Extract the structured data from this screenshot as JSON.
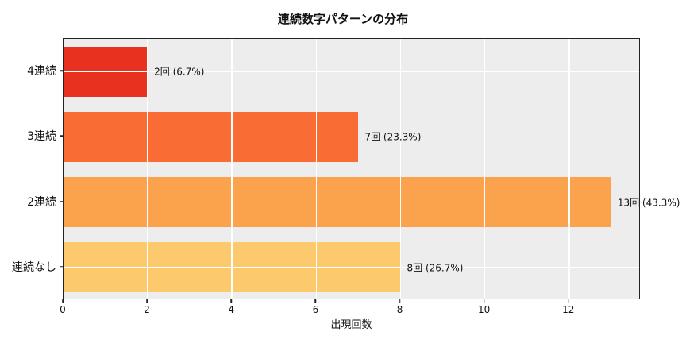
{
  "figure": {
    "background": "#ffffff",
    "plot_background": "#ededed",
    "spine_color": "#222222",
    "grid_color": "#ffffff"
  },
  "chart_data": {
    "type": "bar",
    "orientation": "horizontal",
    "title": "連続数字パターンの分布",
    "xlabel": "出現回数",
    "ylabel": "",
    "categories": [
      "4連続",
      "3連続",
      "2連続",
      "連続なし"
    ],
    "values": [
      2,
      7,
      13,
      8
    ],
    "bar_labels": [
      "2回 (6.7%)",
      "7回 (23.3%)",
      "13回 (43.3%)",
      "8回 (26.7%)"
    ],
    "bar_colors": [
      "#e8311e",
      "#f96d35",
      "#faa24c",
      "#fcca6c"
    ],
    "xlim": [
      0,
      13.7
    ],
    "xticks": [
      0,
      2,
      4,
      6,
      8,
      10,
      12
    ],
    "grid": true,
    "legend": false
  }
}
